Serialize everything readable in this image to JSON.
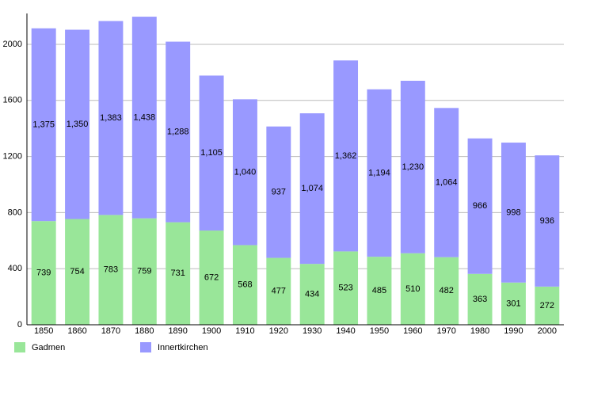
{
  "chart_data": {
    "type": "stacked-bar",
    "categories": [
      1850,
      1860,
      1870,
      1880,
      1890,
      1900,
      1910,
      1920,
      1930,
      1940,
      1950,
      1960,
      1970,
      1980,
      1990,
      2000
    ],
    "series": [
      {
        "name": "Gadmen",
        "color": "#99e699",
        "values": [
          739,
          754,
          783,
          759,
          731,
          672,
          568,
          477,
          434,
          523,
          485,
          510,
          482,
          363,
          301,
          272
        ]
      },
      {
        "name": "Innertkirchen",
        "color": "#9999ff",
        "values": [
          1375,
          1350,
          1383,
          1438,
          1288,
          1105,
          1040,
          937,
          1074,
          1362,
          1194,
          1230,
          1064,
          966,
          998,
          936
        ],
        "value_labels": [
          "1,375",
          "1,350",
          "1,383",
          "1,438",
          "1,288",
          "1,105",
          "1,040",
          "937",
          "1,074",
          "1,362",
          "1,194",
          "1,230",
          "1,064",
          "966",
          "998",
          "936"
        ]
      }
    ],
    "ylim": [
      0,
      2220
    ],
    "yticks": [
      0,
      400,
      800,
      1200,
      1600,
      2000
    ],
    "grid": true
  }
}
